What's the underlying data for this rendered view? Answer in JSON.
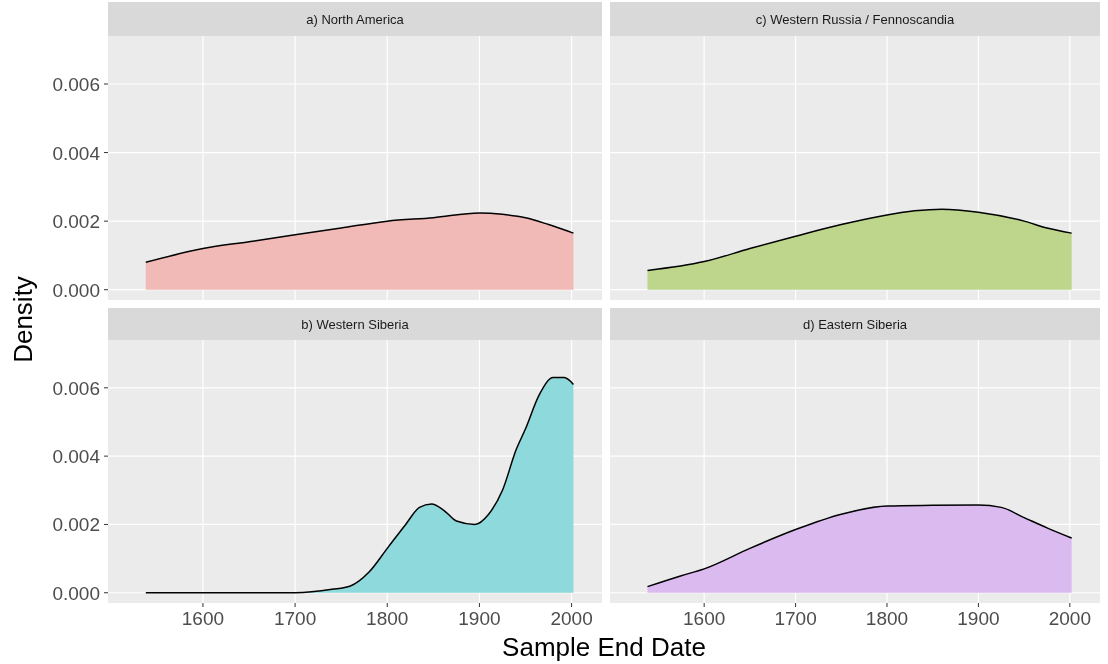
{
  "chart_data": [
    {
      "type": "area",
      "title": "a) North America",
      "ylabel": "Density",
      "color": "#f2bab6",
      "x": [
        1538,
        1600,
        1650,
        1700,
        1750,
        1800,
        1850,
        1900,
        1925,
        1950,
        1975,
        2002
      ],
      "values": [
        0.0008,
        0.0012,
        0.0014,
        0.0016,
        0.0018,
        0.002,
        0.0021,
        0.00224,
        0.0022,
        0.0021,
        0.0019,
        0.00165
      ],
      "xlim": [
        1497,
        2033
      ],
      "ylim": [
        -0.0003,
        0.0074
      ],
      "xticks": [
        1600,
        1700,
        1800,
        1900,
        2000
      ],
      "yticks": [
        {
          "value": 0,
          "label": "0.000"
        },
        {
          "value": 0.002,
          "label": "0.002"
        },
        {
          "value": 0.004,
          "label": "0.004"
        },
        {
          "value": 0.006,
          "label": "0.006"
        }
      ],
      "grid": true,
      "tick_labels": "y"
    },
    {
      "type": "area",
      "title": "c) Western Russia / Fennoscandia",
      "color": "#bdd68c",
      "x": [
        1538,
        1600,
        1650,
        1700,
        1750,
        1800,
        1830,
        1860,
        1900,
        1950,
        1975,
        2002
      ],
      "values": [
        0.00056,
        0.00082,
        0.0012,
        0.00156,
        0.0019,
        0.00218,
        0.0023,
        0.00235,
        0.00226,
        0.002,
        0.0018,
        0.00165
      ],
      "xlim": [
        1497,
        2033
      ],
      "ylim": [
        -0.0003,
        0.0074
      ],
      "xticks": [
        1600,
        1700,
        1800,
        1900,
        2000
      ],
      "yticks": [
        0,
        0.002,
        0.004,
        0.006
      ],
      "grid": true,
      "tick_labels": false
    },
    {
      "type": "area",
      "title": "b) Western Siberia",
      "xlabel": "Sample End Date",
      "color": "#8ed9dc",
      "x": [
        1538,
        1600,
        1700,
        1740,
        1760,
        1780,
        1800,
        1820,
        1835,
        1848,
        1862,
        1875,
        1895,
        1910,
        1925,
        1940,
        1950,
        1965,
        1980,
        1992,
        2002
      ],
      "values": [
        0,
        0,
        0,
        0.0001,
        0.0002,
        0.0006,
        0.0013,
        0.002,
        0.0025,
        0.0026,
        0.0024,
        0.0021,
        0.002,
        0.0023,
        0.003,
        0.0042,
        0.0048,
        0.0058,
        0.0063,
        0.0063,
        0.0061
      ],
      "xlim": [
        1497,
        2033
      ],
      "ylim": [
        -0.0003,
        0.0074
      ],
      "xticks": [
        1600,
        1700,
        1800,
        1900,
        2000
      ],
      "yticks": [
        {
          "value": 0,
          "label": "0.000"
        },
        {
          "value": 0.002,
          "label": "0.002"
        },
        {
          "value": 0.004,
          "label": "0.004"
        },
        {
          "value": 0.006,
          "label": "0.006"
        }
      ],
      "grid": true
    },
    {
      "type": "area",
      "title": "d) Eastern Siberia",
      "color": "#dbbaf0",
      "x": [
        1538,
        1575,
        1600,
        1650,
        1700,
        1750,
        1800,
        1850,
        1900,
        1925,
        1950,
        1975,
        2002
      ],
      "values": [
        0.00018,
        0.0005,
        0.0007,
        0.0013,
        0.00185,
        0.0023,
        0.00254,
        0.00256,
        0.00257,
        0.0025,
        0.0022,
        0.0019,
        0.0016
      ],
      "xlim": [
        1497,
        2033
      ],
      "ylim": [
        -0.0003,
        0.0074
      ],
      "xticks": [
        1600,
        1700,
        1800,
        1900,
        2000
      ],
      "yticks": [
        0,
        0.002,
        0.004,
        0.006
      ],
      "grid": true,
      "tick_labels": "x"
    }
  ]
}
